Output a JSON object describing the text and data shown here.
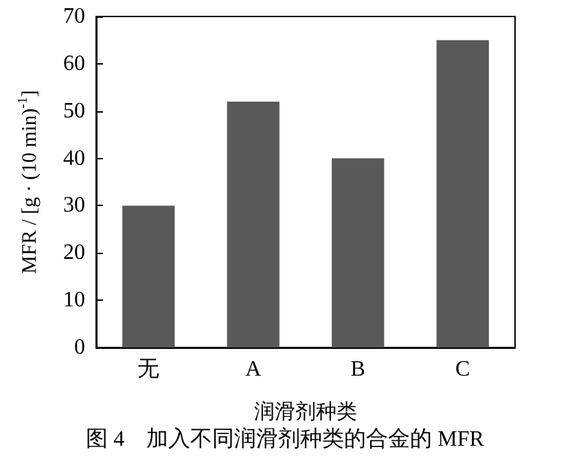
{
  "chart_data": {
    "type": "bar",
    "categories": [
      "无",
      "A",
      "B",
      "C"
    ],
    "values": [
      30,
      52,
      40,
      65
    ],
    "color": "#595959",
    "xlabel": "润滑剂种类",
    "ylabel": "MFR / [g · (10 min)$^{-1}$]",
    "ylim": [
      0,
      70
    ],
    "yticks": [
      0,
      10,
      20,
      30,
      40,
      50,
      60,
      70
    ],
    "grid": false,
    "annotations": [
      "图 4　加入不同润滑剂种类的合金的 MFR"
    ]
  }
}
